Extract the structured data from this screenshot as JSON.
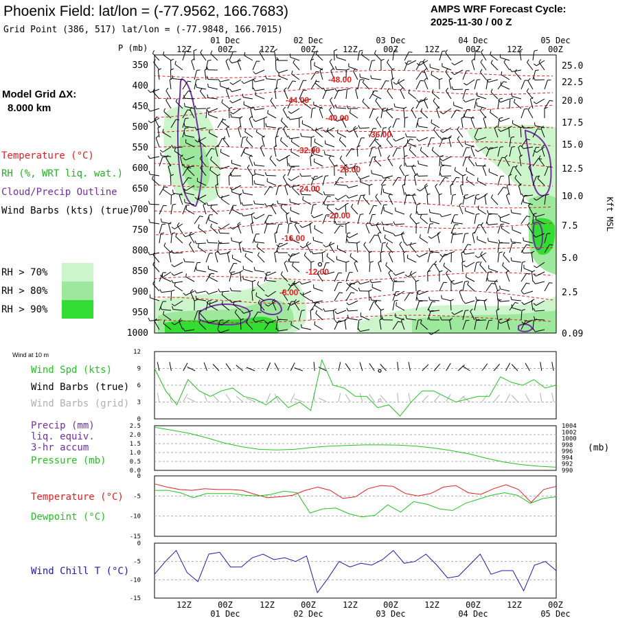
{
  "header": {
    "title": "Phoenix Field:  lat/lon = (-77.9562, 166.7683)",
    "subtitle": "Grid Point (386, 517) lat/lon = (-77.9848, 166.7015)",
    "cycle_line1": "AMPS WRF Forecast Cycle:",
    "cycle_line2": "2025-11-30 / 00  Z"
  },
  "left_panel": {
    "grid_label": "Model Grid ΔX:",
    "grid_value": "8.000 km",
    "legend_temperature": "Temperature (°C)",
    "legend_rh": "RH (%, WRT liq. wat.)",
    "legend_cloud": "Cloud/Precip Outline",
    "legend_wind": "Wind Barbs (kts) (true)",
    "rh_70": "RH > 70%",
    "rh_80": "RH > 80%",
    "rh_90": "RH > 90%"
  },
  "colors": {
    "temperature": "#e02020",
    "rh_legend_text": "#20b020",
    "cloud": "#7030a0",
    "wind": "#000000",
    "wind_grid": "#b0b0b0",
    "rh70": "#ccf5cc",
    "rh80": "#9ee89e",
    "rh90": "#33dd33",
    "line_green": "#22c022",
    "windchill": "#1a1ab0"
  },
  "time_axis": {
    "top_days": [
      "01 Dec",
      "02 Dec",
      "03 Dec",
      "04 Dec",
      "05 Dec"
    ],
    "hours": [
      "12Z",
      "00Z",
      "12Z",
      "00Z",
      "12Z",
      "00Z",
      "12Z",
      "00Z",
      "12Z",
      "00Z"
    ],
    "bottom_days": [
      "01 Dec",
      "02 Dec",
      "03 Dec",
      "04 Dec",
      "05 Dec"
    ]
  },
  "chart_data": [
    {
      "type": "heatmap",
      "title": "",
      "ylabel": "P (mb)",
      "ylabel_right": "Kft MSL",
      "y_ticks": [
        350,
        400,
        450,
        500,
        550,
        600,
        650,
        700,
        750,
        800,
        850,
        900,
        950,
        1000
      ],
      "y_ticks_right": [
        "25.0",
        "22.5",
        "20.0",
        "17.5",
        "15.0",
        "12.5",
        "10.0",
        "7.5",
        "5.0",
        "2.5",
        "0.09"
      ],
      "temperature_labels": [
        "-48.00",
        "-44.00",
        "-40.00",
        "-36.00",
        "-32.00",
        "-28.00",
        "-24.00",
        "-20.00",
        "-16.00",
        "-12.00",
        "-8.00"
      ]
    },
    {
      "type": "line",
      "title": "Wind at 10 m",
      "series": [
        {
          "name": "Wind Spd (kts)",
          "values": [
            9,
            5,
            2.5,
            7,
            5,
            4,
            5,
            5.5,
            4,
            3.5,
            2.5,
            4,
            2,
            3,
            1.5,
            10.5,
            6,
            5.5,
            4,
            4,
            2,
            2.5,
            0.5,
            3,
            5,
            5,
            4,
            3,
            3.5,
            4,
            4,
            7.5,
            6.5,
            6,
            7,
            5.5,
            6
          ]
        }
      ],
      "ylim": [
        0,
        12
      ],
      "y_ticks": [
        0,
        3,
        6,
        9,
        12
      ],
      "legend": [
        "Wind Spd (kts)",
        "Wind Barbs (true)",
        "Wind Barbs (grid)"
      ]
    },
    {
      "type": "line",
      "series": [
        {
          "name": "Pressure (mb)",
          "values": [
            1003.5,
            1002.6,
            1001.6,
            1000.2,
            998.6,
            997.4,
            996.6,
            996.4,
            996.6,
            997.2,
            997.6,
            997.8,
            998.0,
            998.0,
            997.9,
            997.6,
            997.0,
            996.2,
            995.2,
            993.8,
            992.6,
            991.8,
            991.3,
            991.0
          ]
        }
      ],
      "legend": [
        "Precip (mm)",
        "liq. equiv.",
        "3-hr accum",
        "Pressure (mb)"
      ],
      "ylim_left": [
        0,
        2.5
      ],
      "y_ticks_left": [
        "0.0",
        "0.5",
        "1.0",
        "1.5",
        "2.0",
        "2.5"
      ],
      "ylim_right": [
        990,
        1004
      ],
      "y_ticks_right": [
        "990",
        "992",
        "994",
        "996",
        "998",
        "1000",
        "1002",
        "1004"
      ],
      "ylabel_right": "(mb)"
    },
    {
      "type": "line",
      "series": [
        {
          "name": "Temperature (°C)",
          "values": [
            -2,
            -2.8,
            -3.4,
            -3.6,
            -3.2,
            -3.4,
            -3.4,
            -3.6,
            -4.6,
            -5.4,
            -5.2,
            -4.8,
            -3.6,
            -2.8,
            -3.6,
            -5.6,
            -5.2,
            -3.2,
            -2.4,
            -2.6,
            -4.4,
            -5.0,
            -4.4,
            -2.8,
            -2.4,
            -4.2,
            -4.6,
            -3.2,
            -2.2,
            -3.4,
            -6.6,
            -3.4,
            -2.6
          ]
        },
        {
          "name": "Dewpoint (°C)",
          "values": [
            -3.6,
            -3.6,
            -4.2,
            -5.4,
            -4.4,
            -4.4,
            -4.4,
            -4.8,
            -5.0,
            -4.6,
            -3.8,
            -4.2,
            -9.2,
            -8.2,
            -8.0,
            -9.4,
            -10.2,
            -9.8,
            -7.2,
            -9.0,
            -6.4,
            -7.0,
            -8.2,
            -8.6,
            -6.8,
            -5.8,
            -4.8,
            -4.2,
            -4.8,
            -6.8,
            -5.6,
            -5.2
          ]
        }
      ],
      "ylim": [
        -15,
        0
      ],
      "y_ticks": [
        -15,
        -10,
        -5,
        0
      ]
    },
    {
      "type": "line",
      "series": [
        {
          "name": "Wind Chill T (°C)",
          "values": [
            -8.5,
            -5,
            -2,
            -8,
            -10.5,
            -3,
            -2.5,
            -6.5,
            -6.5,
            -4,
            -3,
            -4.5,
            -4,
            -5,
            -3.5,
            -13.5,
            -9.5,
            -5,
            -6.5,
            -5.5,
            -6,
            -4.5,
            -2,
            -5.5,
            -5,
            -3,
            -6,
            -9.5,
            -9,
            -6,
            -3,
            -8.5,
            -7.5,
            -7.5,
            -13,
            -6,
            -5,
            -7.5
          ]
        }
      ],
      "ylim": [
        -15,
        0
      ],
      "y_ticks": [
        -15,
        -10,
        -5,
        0
      ]
    }
  ]
}
